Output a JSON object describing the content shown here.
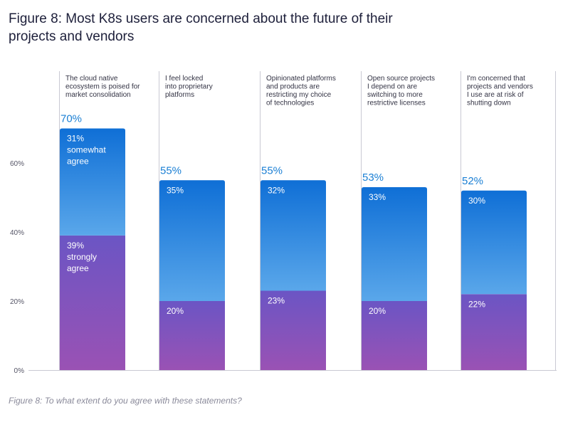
{
  "title": "Figure 8: Most K8s users are concerned about the future of their projects and vendors",
  "caption": "Figure 8: To what extent do you agree with these statements?",
  "colors": {
    "somewhat_top": "#0f6fd6",
    "somewhat_bottom": "#5aa7ea",
    "strongly_top": "#6b55c4",
    "strongly_bottom": "#9a52b4",
    "total_label": "#1a7fd4",
    "axis_text": "#555566",
    "divider": "#c9c9d3"
  },
  "chart_data": {
    "type": "bar",
    "stacked": true,
    "categories": [
      "The cloud native ecosystem is poised for market consolidation",
      "I feel locked into proprietary platforms",
      "Opinionated platforms and products are restricting my choice of technologies",
      "Open source projects I depend on are switching to more restrictive licenses",
      "I'm concerned that projects and vendors I use are at risk of shutting down"
    ],
    "category_lines": [
      [
        "The cloud native",
        "ecosystem is poised for",
        "market consolidation"
      ],
      [
        "I feel locked",
        "into proprietary",
        "platforms"
      ],
      [
        "Opinionated platforms",
        "and products are",
        "restricting my choice",
        "of technologies"
      ],
      [
        "Open source projects",
        "I depend on are",
        "switching to more",
        "restrictive licenses"
      ],
      [
        "I'm concerned that",
        "projects and vendors",
        "I use are at risk of",
        "shutting down"
      ]
    ],
    "series": [
      {
        "values": [
          39,
          20,
          23,
          20,
          22
        ],
        "labels": [
          "39%",
          "20%",
          "23%",
          "20%",
          "22%"
        ],
        "first_label_suffix": [
          "strongly",
          "agree"
        ]
      },
      {
        "values": [
          31,
          35,
          32,
          33,
          30
        ],
        "labels": [
          "31%",
          "35%",
          "32%",
          "33%",
          "30%"
        ],
        "first_label_suffix": [
          "somewhat",
          "agree"
        ]
      }
    ],
    "totals": [
      70,
      55,
      55,
      53,
      52
    ],
    "total_labels": [
      "70%",
      "55%",
      "55%",
      "53%",
      "52%"
    ],
    "yticks": [
      0,
      20,
      40,
      60
    ],
    "ytick_labels": [
      "0%",
      "20%",
      "40%",
      "60%"
    ],
    "ylim": [
      0,
      70
    ],
    "grid": false,
    "legend": "none"
  }
}
